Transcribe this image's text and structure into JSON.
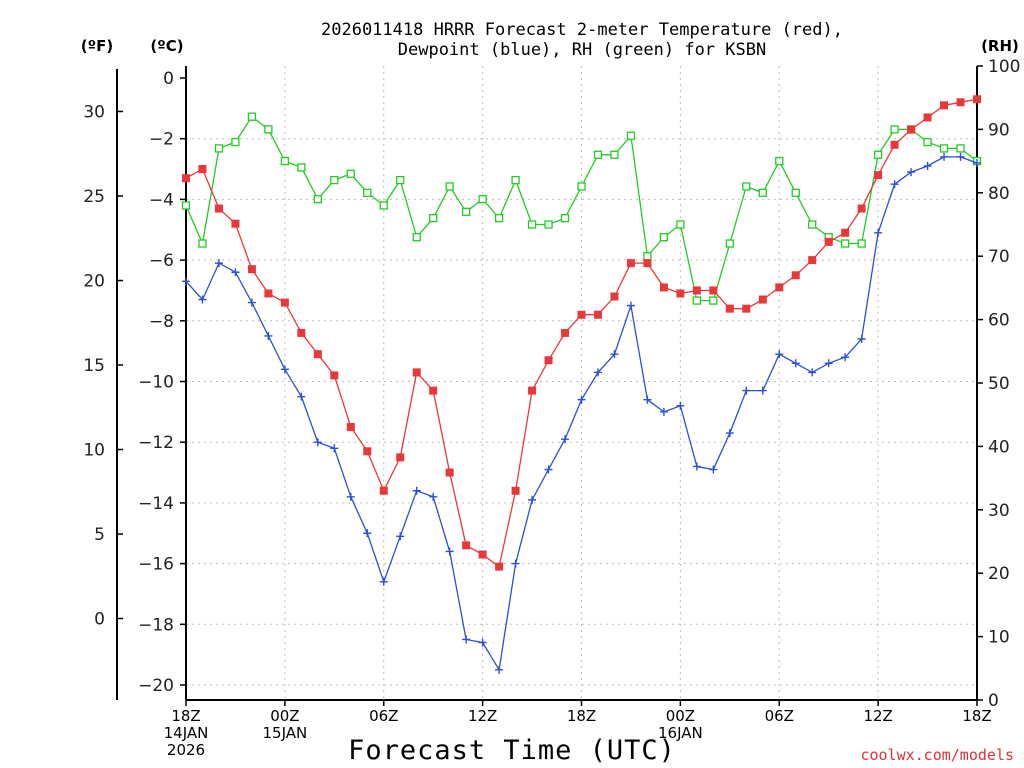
{
  "title_line1": "2026011418 HRRR Forecast 2-meter Temperature (red),",
  "title_line2": "Dewpoint (blue), RH (green) for KSBN",
  "units": {
    "fahrenheit": "(ºF)",
    "celsius": "(ºC)",
    "rh": "(RH)"
  },
  "xaxis_title": "Forecast Time (UTC)",
  "credit": "coolwx.com/models",
  "colors": {
    "temperature": "#e8383a",
    "dewpoint": "#2b4fd6",
    "rh": "#22cc22",
    "grid": "#bfbfbf"
  },
  "chart_data": {
    "type": "line",
    "title": "2026011418 HRRR Forecast 2-meter Temperature (red), Dewpoint (blue), RH (green) for KSBN",
    "xlabel": "Forecast Time (UTC)",
    "x": [
      0,
      1,
      2,
      3,
      4,
      5,
      6,
      7,
      8,
      9,
      10,
      11,
      12,
      13,
      14,
      15,
      16,
      17,
      18,
      19,
      20,
      21,
      22,
      23,
      24,
      25,
      26,
      27,
      28,
      29,
      30,
      31,
      32,
      33,
      34,
      35,
      36,
      37,
      38,
      39,
      40,
      41,
      42,
      43,
      44,
      45,
      46,
      47,
      48
    ],
    "x_unit": "forecast hour from 2026-01-14 18Z",
    "xlim": [
      0,
      48
    ],
    "x_ticks": [
      {
        "hour": 0,
        "lines": [
          "18Z",
          "14JAN",
          "2026"
        ]
      },
      {
        "hour": 6,
        "lines": [
          "00Z",
          "15JAN"
        ]
      },
      {
        "hour": 12,
        "lines": [
          "06Z"
        ]
      },
      {
        "hour": 18,
        "lines": [
          "12Z"
        ]
      },
      {
        "hour": 24,
        "lines": [
          "18Z"
        ]
      },
      {
        "hour": 30,
        "lines": [
          "00Z",
          "16JAN"
        ]
      },
      {
        "hour": 36,
        "lines": [
          "06Z"
        ]
      },
      {
        "hour": 42,
        "lines": [
          "12Z"
        ]
      },
      {
        "hour": 48,
        "lines": [
          "18Z"
        ]
      }
    ],
    "y_celsius": {
      "label": "(ºC)",
      "ylim": [
        -20.5,
        0.5
      ],
      "ticks": [
        "0",
        "−2",
        "−4",
        "−6",
        "−8",
        "−10",
        "−12",
        "−14",
        "−16",
        "−18",
        "−20"
      ]
    },
    "y_fahrenheit": {
      "label": "(ºF)",
      "ticks": [
        "30",
        "25",
        "20",
        "15",
        "10",
        "5",
        "0"
      ]
    },
    "y_rh": {
      "label": "(RH)",
      "ylim": [
        0,
        100
      ],
      "ticks": [
        "100",
        "90",
        "80",
        "70",
        "60",
        "50",
        "40",
        "30",
        "20",
        "10",
        "0"
      ]
    },
    "grid": true,
    "series": [
      {
        "name": "Temperature",
        "unit": "C",
        "axis": "left",
        "marker": "filled-square",
        "color": "#e8383a",
        "values": [
          -3.3,
          -3.0,
          -4.3,
          -4.8,
          -6.3,
          -7.1,
          -7.4,
          -8.4,
          -9.1,
          -9.8,
          -11.5,
          -12.3,
          -13.6,
          -12.5,
          -9.7,
          -10.3,
          -13.0,
          -15.4,
          -15.7,
          -16.1,
          -13.6,
          -10.3,
          -9.3,
          -8.4,
          -7.8,
          -7.8,
          -7.2,
          -6.1,
          -6.1,
          -6.9,
          -7.1,
          -7.0,
          -7.0,
          -7.6,
          -7.6,
          -7.3,
          -6.9,
          -6.5,
          -6.0,
          -5.4,
          -5.1,
          -4.3,
          -3.2,
          -2.2,
          -1.7,
          -1.3,
          -0.9,
          -0.8,
          -0.7
        ]
      },
      {
        "name": "Dewpoint",
        "unit": "C",
        "axis": "left",
        "marker": "plus",
        "color": "#2b4fd6",
        "values": [
          -6.7,
          -7.3,
          -6.1,
          -6.4,
          -7.4,
          -8.5,
          -9.6,
          -10.5,
          -12.0,
          -12.2,
          -13.8,
          -15.0,
          -16.6,
          -15.1,
          -13.6,
          -13.8,
          -15.6,
          -18.5,
          -18.6,
          -19.5,
          -16.0,
          -13.9,
          -12.9,
          -11.9,
          -10.6,
          -9.7,
          -9.1,
          -7.5,
          -10.6,
          -11.0,
          -10.8,
          -12.8,
          -12.9,
          -11.7,
          -10.3,
          -10.3,
          -9.1,
          -9.4,
          -9.7,
          -9.4,
          -9.2,
          -8.6,
          -5.1,
          -3.5,
          -3.1,
          -2.9,
          -2.6,
          -2.6,
          -2.8
        ]
      },
      {
        "name": "RH",
        "unit": "%",
        "axis": "right",
        "marker": "open-square",
        "color": "#22cc22",
        "values": [
          78,
          72,
          87,
          88,
          92,
          90,
          85,
          84,
          79,
          82,
          83,
          80,
          78,
          82,
          73,
          76,
          81,
          77,
          79,
          76,
          82,
          75,
          75,
          76,
          81,
          86,
          86,
          89,
          70,
          73,
          75,
          63,
          63,
          72,
          81,
          80,
          85,
          80,
          75,
          73,
          72,
          72,
          86,
          90,
          90,
          88,
          87,
          87,
          85
        ]
      }
    ]
  }
}
